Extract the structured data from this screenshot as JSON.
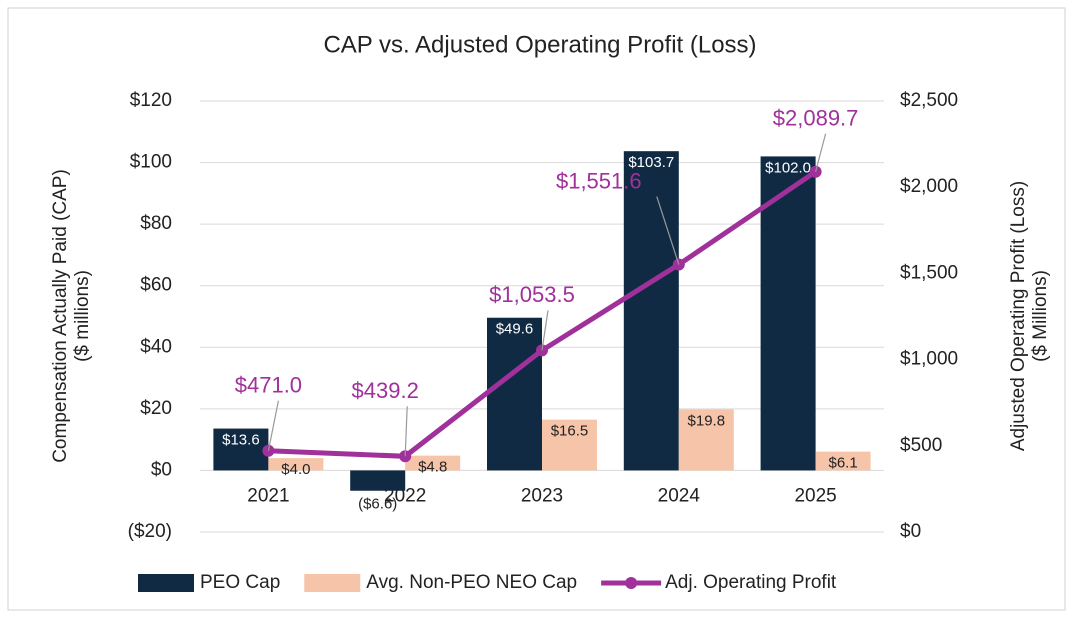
{
  "chart_data": {
    "type": "bar",
    "title": "CAP vs. Adjusted Operating Profit (Loss)",
    "ylabel": [
      "Compensation Actually Paid (CAP)",
      "($ millions)"
    ],
    "y2label": [
      "Adjusted Operating Profit (Loss)",
      "($ Millions)"
    ],
    "categories": [
      "2021",
      "2022",
      "2023",
      "2024",
      "2025"
    ],
    "series": [
      {
        "name": "PEO Cap",
        "type": "bar",
        "color": "#102a43",
        "values": [
          13.6,
          -6.6,
          49.6,
          103.7,
          102.0
        ],
        "value_labels": [
          "$13.6",
          "($6.6)",
          "$49.6",
          "$103.7",
          "$102.0"
        ]
      },
      {
        "name": "Avg. Non-PEO NEO Cap",
        "type": "bar",
        "color": "#f6c4a8",
        "values": [
          4.0,
          4.8,
          16.5,
          19.8,
          6.1
        ],
        "value_labels": [
          "$4.0",
          "$4.8",
          "$16.5",
          "$19.8",
          "$6.1"
        ]
      },
      {
        "name": "Adj. Operating Profit",
        "type": "line",
        "axis": "y2",
        "color": "#a0309a",
        "values": [
          471.0,
          439.2,
          1053.5,
          1551.6,
          2089.7
        ],
        "value_labels": [
          "$471.0",
          "$439.2",
          "$1,053.5",
          "$1,551.6",
          "$2,089.7"
        ]
      }
    ],
    "ylim": [
      -20,
      120
    ],
    "yticks": [
      {
        "value": -20,
        "label": "($20)"
      },
      {
        "value": 0,
        "label": "$0"
      },
      {
        "value": 20,
        "label": "$20"
      },
      {
        "value": 40,
        "label": "$40"
      },
      {
        "value": 60,
        "label": "$60"
      },
      {
        "value": 80,
        "label": "$80"
      },
      {
        "value": 100,
        "label": "$100"
      },
      {
        "value": 120,
        "label": "$120"
      }
    ],
    "y2lim": [
      0,
      2500
    ],
    "y2ticks": [
      {
        "value": 0,
        "label": "$0"
      },
      {
        "value": 500,
        "label": "$500"
      },
      {
        "value": 1000,
        "label": "$1,000"
      },
      {
        "value": 1500,
        "label": "$1,500"
      },
      {
        "value": 2000,
        "label": "$2,000"
      },
      {
        "value": 2500,
        "label": "$2,500"
      }
    ],
    "grid": true,
    "legend": "bottom"
  }
}
